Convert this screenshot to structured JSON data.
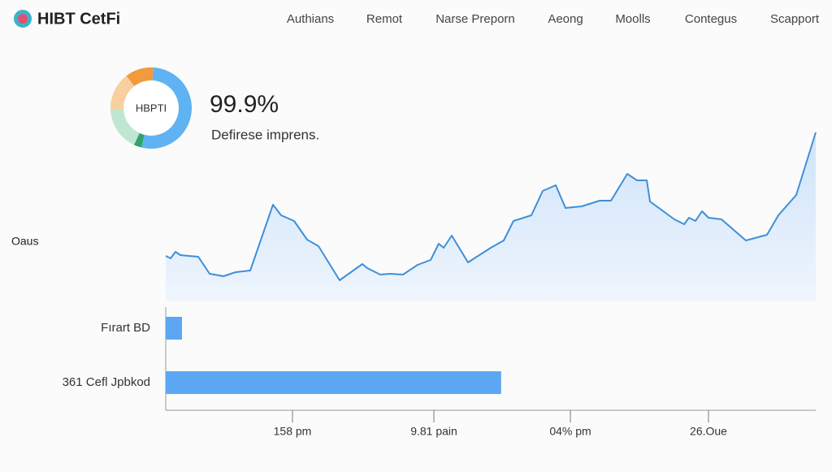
{
  "header": {
    "brand": "HIBT CetFi",
    "nav": [
      "Authians",
      "Remot",
      "Narse Preporn",
      "Aeong",
      "Moolls",
      "Contegus",
      "Scapport"
    ]
  },
  "chart_data": [
    {
      "type": "pie",
      "center_label": "HBPTI",
      "headline": "99.9%",
      "subtitle": "Defirese imprens.",
      "values": [
        52,
        3,
        17,
        15,
        11
      ],
      "colors": [
        "#5fb3f2",
        "#2ea46a",
        "#bfe6d2",
        "#f9cf9f",
        "#f29a3e"
      ]
    },
    {
      "type": "line",
      "y_label": "Oaus",
      "color": "#3f8fd8",
      "x": [
        0,
        0.75,
        1.5,
        2.25,
        3.5,
        5,
        6.75,
        8.875,
        10.75,
        13,
        16.5,
        17.75,
        19.75,
        21.75,
        23.5,
        26.75,
        30.25,
        31,
        33,
        34.5,
        36.5,
        38.75,
        40.75,
        42,
        42.75,
        44,
        46.5,
        50,
        52,
        53.5,
        56.25,
        58,
        60,
        61.5,
        64,
        66.75,
        68.5,
        71,
        72.5,
        74,
        74.5,
        78.25,
        79.75,
        80.5,
        81.5,
        82.5,
        83.5,
        85.5,
        89.25,
        92.5,
        94.25,
        97,
        100
      ],
      "values": [
        27.5,
        26,
        30,
        28,
        27.5,
        27,
        16.5,
        15,
        17.5,
        18.5,
        59,
        52.5,
        49,
        37.5,
        33.5,
        12.5,
        22.5,
        20,
        16,
        16.5,
        16,
        22,
        25,
        35,
        32.5,
        40,
        23.5,
        32.5,
        37,
        49,
        52.5,
        67.5,
        71,
        57,
        58,
        61.5,
        61.5,
        78,
        74,
        74,
        61,
        50,
        47,
        51,
        49,
        55,
        51,
        50,
        37,
        40.5,
        52.5,
        65,
        103.5
      ],
      "xlim": [
        0,
        100
      ],
      "ylim": [
        0,
        110
      ],
      "xticks": [
        {
          "value": 19.5,
          "label": "158 pm"
        },
        {
          "value": 41.25,
          "label": "9.81 pain"
        },
        {
          "value": 62.25,
          "label": "04% pm"
        },
        {
          "value": 83.5,
          "label": "26.Oue"
        }
      ]
    },
    {
      "type": "bar",
      "orientation": "horizontal",
      "categories": [
        "Fırart BD",
        "361 Cefl Jpbkod"
      ],
      "values": [
        2.5,
        51.6
      ],
      "color": "#5ca7f4",
      "xlim": [
        0,
        100
      ]
    }
  ]
}
